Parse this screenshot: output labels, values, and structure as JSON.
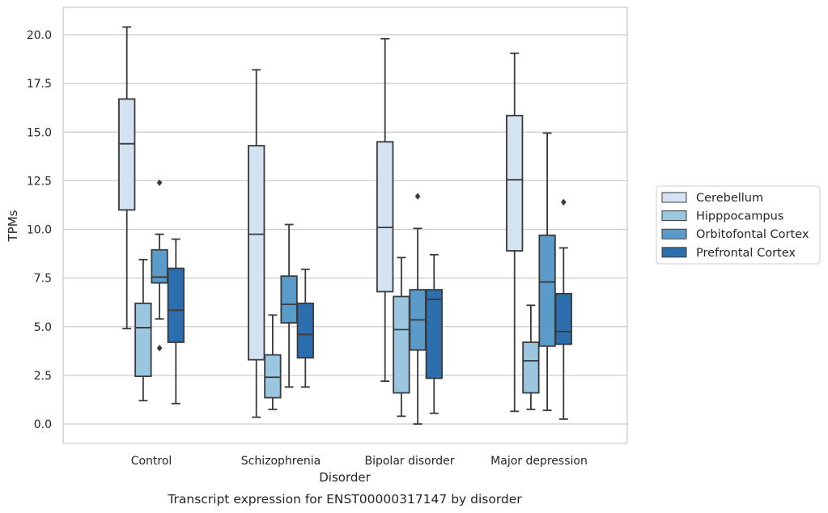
{
  "chart_data": {
    "type": "box",
    "title": "",
    "caption": "Transcript expression for ENST00000317147 by disorder",
    "xlabel": "Disorder",
    "ylabel": "TPMs",
    "ylim": [
      -1.0,
      21.4
    ],
    "yticks": [
      "0.0",
      "2.5",
      "5.0",
      "7.5",
      "10.0",
      "12.5",
      "15.0",
      "17.5",
      "20.0"
    ],
    "categories": [
      "Control",
      "Schizophrenia",
      "Bipolar disorder",
      "Major depression"
    ],
    "grid": "horizontal",
    "legend_position": "right",
    "series": [
      {
        "name": "Cerebellum",
        "color": "#d3e3f2",
        "boxes": [
          {
            "whislo": 4.9,
            "q1": 11.0,
            "med": 14.4,
            "q3": 16.7,
            "whishi": 20.4,
            "fliers": []
          },
          {
            "whislo": 0.35,
            "q1": 3.3,
            "med": 9.75,
            "q3": 14.3,
            "whishi": 18.2,
            "fliers": []
          },
          {
            "whislo": 2.2,
            "q1": 6.8,
            "med": 10.1,
            "q3": 14.5,
            "whishi": 19.8,
            "fliers": []
          },
          {
            "whislo": 0.65,
            "q1": 8.9,
            "med": 12.55,
            "q3": 15.85,
            "whishi": 19.05,
            "fliers": []
          }
        ]
      },
      {
        "name": "Hipppocampus",
        "color": "#9ac6df",
        "boxes": [
          {
            "whislo": 1.2,
            "q1": 2.45,
            "med": 4.95,
            "q3": 6.2,
            "whishi": 8.45,
            "fliers": []
          },
          {
            "whislo": 0.75,
            "q1": 1.35,
            "med": 2.4,
            "q3": 3.55,
            "whishi": 5.6,
            "fliers": []
          },
          {
            "whislo": 0.4,
            "q1": 1.6,
            "med": 4.85,
            "q3": 6.55,
            "whishi": 8.55,
            "fliers": []
          },
          {
            "whislo": 0.75,
            "q1": 1.6,
            "med": 3.25,
            "q3": 4.2,
            "whishi": 6.1,
            "fliers": []
          }
        ]
      },
      {
        "name": "Orbitofontal Cortex",
        "color": "#5a9bc9",
        "boxes": [
          {
            "whislo": 5.4,
            "q1": 7.25,
            "med": 7.55,
            "q3": 8.95,
            "whishi": 9.75,
            "fliers": [
              12.4,
              3.9
            ]
          },
          {
            "whislo": 1.9,
            "q1": 5.2,
            "med": 6.15,
            "q3": 7.6,
            "whishi": 10.25,
            "fliers": []
          },
          {
            "whislo": 0.0,
            "q1": 3.8,
            "med": 5.35,
            "q3": 6.9,
            "whishi": 10.05,
            "fliers": [
              11.7
            ]
          },
          {
            "whislo": 0.7,
            "q1": 4.0,
            "med": 7.3,
            "q3": 9.7,
            "whishi": 14.95,
            "fliers": []
          }
        ]
      },
      {
        "name": "Prefrontal Cortex",
        "color": "#2d6fae",
        "boxes": [
          {
            "whislo": 1.05,
            "q1": 4.2,
            "med": 5.85,
            "q3": 8.0,
            "whishi": 9.5,
            "fliers": []
          },
          {
            "whislo": 1.9,
            "q1": 3.4,
            "med": 4.6,
            "q3": 6.2,
            "whishi": 7.95,
            "fliers": []
          },
          {
            "whislo": 0.55,
            "q1": 2.35,
            "med": 6.4,
            "q3": 6.9,
            "whishi": 8.7,
            "fliers": []
          },
          {
            "whislo": 0.25,
            "q1": 4.1,
            "med": 4.75,
            "q3": 6.7,
            "whishi": 9.05,
            "fliers": [
              11.4
            ]
          }
        ]
      }
    ]
  }
}
